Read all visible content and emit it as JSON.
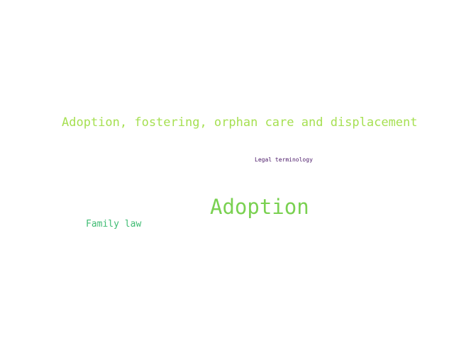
{
  "word_cloud": {
    "words": [
      {
        "text": "Adoption, fostering, orphan care and displacement",
        "color": "#a6e052"
      },
      {
        "text": "Legal terminology",
        "color": "#4a1868"
      },
      {
        "text": "Adoption",
        "color": "#7ad151"
      },
      {
        "text": "Family law",
        "color": "#3fbc73"
      }
    ]
  }
}
